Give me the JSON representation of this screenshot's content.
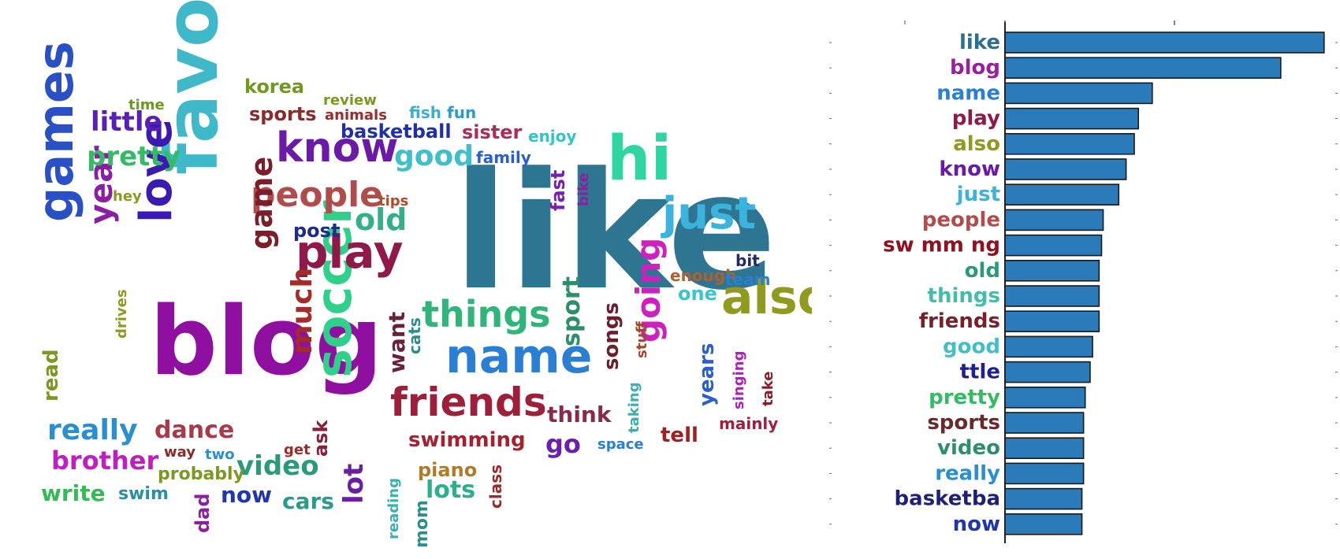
{
  "chart_data": [
    {
      "type": "wordcloud",
      "words": [
        {
          "text": "like",
          "color": "#2e7592"
        },
        {
          "text": "blog",
          "color": "#8f0fa0"
        },
        {
          "text": "favourite",
          "color": "#3fb8c9"
        },
        {
          "text": "games",
          "color": "#2950c4"
        },
        {
          "text": "love",
          "color": "#3a1ab0"
        },
        {
          "text": "hi",
          "color": "#2fd6a4"
        },
        {
          "text": "also",
          "color": "#8f9a1f"
        },
        {
          "text": "name",
          "color": "#2a7fd4"
        },
        {
          "text": "know",
          "color": "#6a1aa6"
        },
        {
          "text": "soccer",
          "color": "#2fd18a"
        },
        {
          "text": "play",
          "color": "#8f1948"
        },
        {
          "text": "people",
          "color": "#b24b4b"
        },
        {
          "text": "friends",
          "color": "#9e1f3a"
        },
        {
          "text": "just",
          "color": "#3bb3dc"
        },
        {
          "text": "things",
          "color": "#2fb57a"
        },
        {
          "text": "really",
          "color": "#2a8fd0"
        },
        {
          "text": "year",
          "color": "#8a1fa4"
        },
        {
          "text": "pretty",
          "color": "#33bb66"
        },
        {
          "text": "little",
          "color": "#5a1fb7"
        },
        {
          "text": "good",
          "color": "#3fbfc9"
        },
        {
          "text": "game",
          "color": "#7a1f2a"
        },
        {
          "text": "much",
          "color": "#a52a2a"
        },
        {
          "text": "going",
          "color": "#d01fbf"
        },
        {
          "text": "old",
          "color": "#33b08a"
        },
        {
          "text": "video",
          "color": "#2a9b7a"
        },
        {
          "text": "sport",
          "color": "#2a8f6a"
        },
        {
          "text": "lot",
          "color": "#6a1fa0"
        },
        {
          "text": "lots",
          "color": "#2ab08a"
        },
        {
          "text": "dance",
          "color": "#a83a4a"
        },
        {
          "text": "brother",
          "color": "#c01fbf"
        },
        {
          "text": "swimming",
          "color": "#a82030"
        },
        {
          "text": "now",
          "color": "#1f36b0"
        },
        {
          "text": "cars",
          "color": "#2a9b8a"
        },
        {
          "text": "write",
          "color": "#33bb55"
        },
        {
          "text": "swim",
          "color": "#2a8fa0"
        },
        {
          "text": "korea",
          "color": "#6f9a1f"
        },
        {
          "text": "sports",
          "color": "#8a2a2a"
        },
        {
          "text": "basketball",
          "color": "#1f2fa8"
        },
        {
          "text": "sister",
          "color": "#b02a5a"
        },
        {
          "text": "family",
          "color": "#2a5fd0"
        },
        {
          "text": "enjoy",
          "color": "#33c4c9"
        },
        {
          "text": "review",
          "color": "#7a9a1f"
        },
        {
          "text": "animals",
          "color": "#a02a2a"
        },
        {
          "text": "fish",
          "color": "#3ab0d0"
        },
        {
          "text": "fun",
          "color": "#2a9bd0"
        },
        {
          "text": "time",
          "color": "#6a9a1f"
        },
        {
          "text": "post",
          "color": "#1f2a8f"
        },
        {
          "text": "hey",
          "color": "#8a9a1f"
        },
        {
          "text": "tips",
          "color": "#b04a2a"
        },
        {
          "text": "fast",
          "color": "#7a1fb0"
        },
        {
          "text": "bike",
          "color": "#8a1fa0"
        },
        {
          "text": "enough",
          "color": "#b0602a"
        },
        {
          "text": "bit",
          "color": "#1f2a6a"
        },
        {
          "text": "team",
          "color": "#2a7fd0"
        },
        {
          "text": "one",
          "color": "#3ac4d0"
        },
        {
          "text": "want",
          "color": "#6a1f3a"
        },
        {
          "text": "cats",
          "color": "#2a8f8a"
        },
        {
          "text": "songs",
          "color": "#6a1f2a"
        },
        {
          "text": "stuff",
          "color": "#a04a2a"
        },
        {
          "text": "years",
          "color": "#2a5fd0"
        },
        {
          "text": "singing",
          "color": "#b01fbf"
        },
        {
          "text": "take",
          "color": "#8a1f2a"
        },
        {
          "text": "drives",
          "color": "#8f9a1f"
        },
        {
          "text": "read",
          "color": "#7a9a1f"
        },
        {
          "text": "think",
          "color": "#8a2a4a"
        },
        {
          "text": "taking",
          "color": "#3ab0b0"
        },
        {
          "text": "tell",
          "color": "#a01f1f"
        },
        {
          "text": "mainly",
          "color": "#a01f3a"
        },
        {
          "text": "go",
          "color": "#6a1fb0"
        },
        {
          "text": "space",
          "color": "#2a7fd0"
        },
        {
          "text": "ask",
          "color": "#8a1f3a"
        },
        {
          "text": "get",
          "color": "#a02a2a"
        },
        {
          "text": "way",
          "color": "#8a2a2a"
        },
        {
          "text": "two",
          "color": "#2a8fd0"
        },
        {
          "text": "probably",
          "color": "#7a9a1f"
        },
        {
          "text": "dad",
          "color": "#8a1fa0"
        },
        {
          "text": "reading",
          "color": "#3ab0b0"
        },
        {
          "text": "piano",
          "color": "#b07a2a"
        },
        {
          "text": "class",
          "color": "#a02a2a"
        },
        {
          "text": "mom",
          "color": "#2a8f8a"
        }
      ]
    },
    {
      "type": "bar",
      "orientation": "horizontal",
      "categories": [
        "like",
        "blog",
        "name",
        "play",
        "also",
        "know",
        "just",
        "people",
        "sw mm ng",
        "old",
        "things",
        "friends",
        "good",
        "ttle",
        "pretty",
        "sports",
        "video",
        "really",
        "basketba",
        "now"
      ],
      "values": [
        390,
        337,
        180,
        163,
        158,
        148,
        139,
        120,
        118,
        115,
        115,
        115,
        107,
        104,
        98,
        96,
        96,
        96,
        94,
        94
      ],
      "label_colors": [
        "#2e6f8e",
        "#9a1fa0",
        "#2a7fd4",
        "#8f1948",
        "#8f9a1f",
        "#6a1aa6",
        "#3bb3dc",
        "#b24b4b",
        "#8f1020",
        "#2a9b7a",
        "#3fbfa9",
        "#7a1f2a",
        "#3fbfc9",
        "#1f1f8f",
        "#33bb66",
        "#6a2a2a",
        "#2a8f6a",
        "#2a8fd0",
        "#1f1f7a",
        "#1f36b0"
      ],
      "bar_color": "#2b7bba",
      "xlim": [
        0,
        395
      ],
      "title": "",
      "xlabel": "",
      "ylabel": ""
    }
  ]
}
